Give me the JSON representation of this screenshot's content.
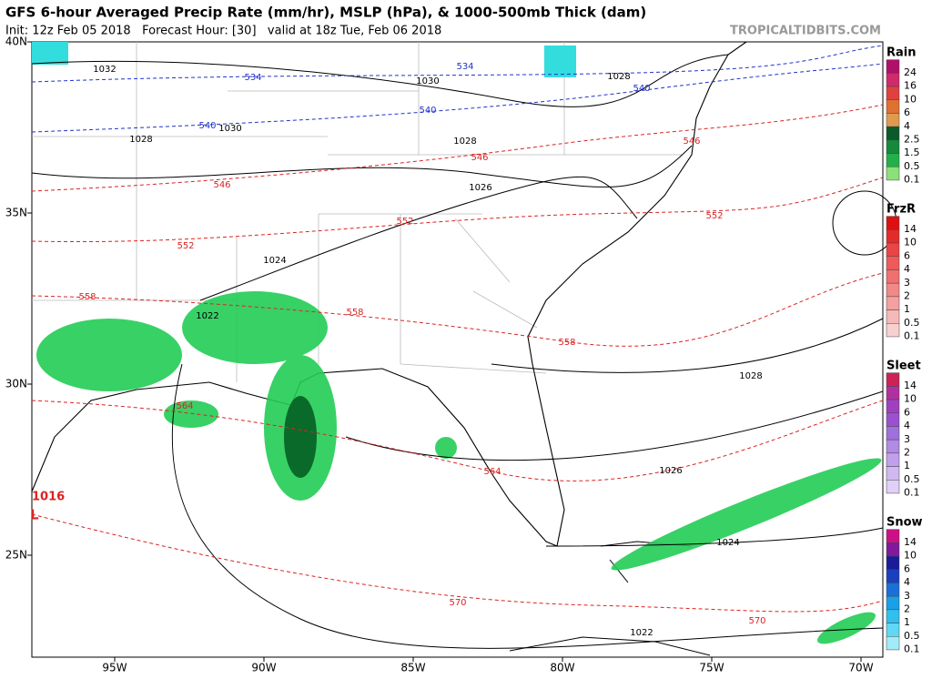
{
  "header": {
    "title": "GFS 6-hour Averaged Precip Rate (mm/hr), MSLP (hPa), & 1000-500mb Thick (dam)",
    "init": "Init: 12z Feb 05 2018   Forecast Hour: [30]   valid at 18z Tue, Feb 06 2018",
    "site": "TROPICALTIDBITS.COM"
  },
  "axes": {
    "lat": [
      "40N",
      "35N",
      "30N",
      "25N"
    ],
    "lon": [
      "95W",
      "90W",
      "85W",
      "80W",
      "75W",
      "70W"
    ]
  },
  "legend": [
    {
      "title": "Rain",
      "levels": [
        "24",
        "16",
        "10",
        "6",
        "4",
        "2.5",
        "1.5",
        "0.5",
        "0.1"
      ]
    },
    {
      "title": "FrzR",
      "levels": [
        "14",
        "10",
        "6",
        "4",
        "3",
        "2",
        "1",
        "0.5",
        "0.1"
      ]
    },
    {
      "title": "Sleet",
      "levels": [
        "14",
        "10",
        "6",
        "4",
        "3",
        "2",
        "1",
        "0.5",
        "0.1"
      ]
    },
    {
      "title": "Snow",
      "levels": [
        "14",
        "10",
        "6",
        "4",
        "3",
        "2",
        "1",
        "0.5",
        "0.1"
      ]
    }
  ],
  "isobars": [
    "1032",
    "1030",
    "1030",
    "1028",
    "1028",
    "1028",
    "1026",
    "1024",
    "1022",
    "1028",
    "1026",
    "1024",
    "1022"
  ],
  "thickness": [
    "534",
    "534",
    "540",
    "540",
    "540",
    "546",
    "546",
    "546",
    "552",
    "552",
    "552",
    "558",
    "558",
    "558",
    "564",
    "564",
    "570",
    "570"
  ],
  "low": {
    "pressure": "1016",
    "symbol": "L"
  }
}
